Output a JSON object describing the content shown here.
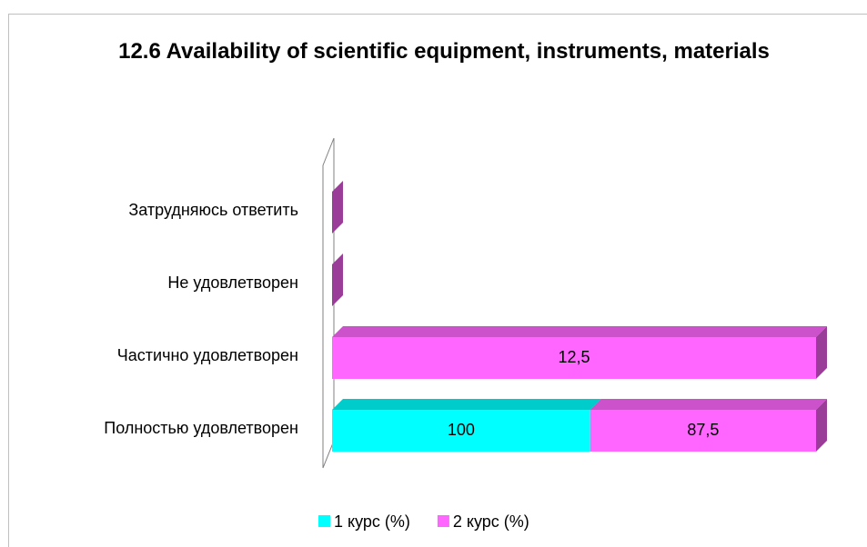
{
  "chart_data": {
    "type": "bar",
    "orientation": "horizontal",
    "stacking": "percent",
    "three_d": true,
    "title": "12.6 Availability of scientific equipment, instruments, materials",
    "categories": [
      "Полностью удовлетворен",
      "Частично удовлетворен",
      "Не удовлетворен",
      "Затрудняюсь ответить"
    ],
    "series": [
      {
        "name": "1 курс (%)",
        "color": "#00ffff",
        "values": [
          100,
          0,
          0,
          0
        ],
        "value_labels": [
          "100",
          "0",
          "0",
          "0"
        ]
      },
      {
        "name": "2 курс (%)",
        "color": "#ff66ff",
        "values": [
          87.5,
          12.5,
          0,
          0
        ],
        "value_labels": [
          "87,5",
          "12,5",
          "0",
          "0"
        ]
      }
    ],
    "legend": "bottom"
  }
}
